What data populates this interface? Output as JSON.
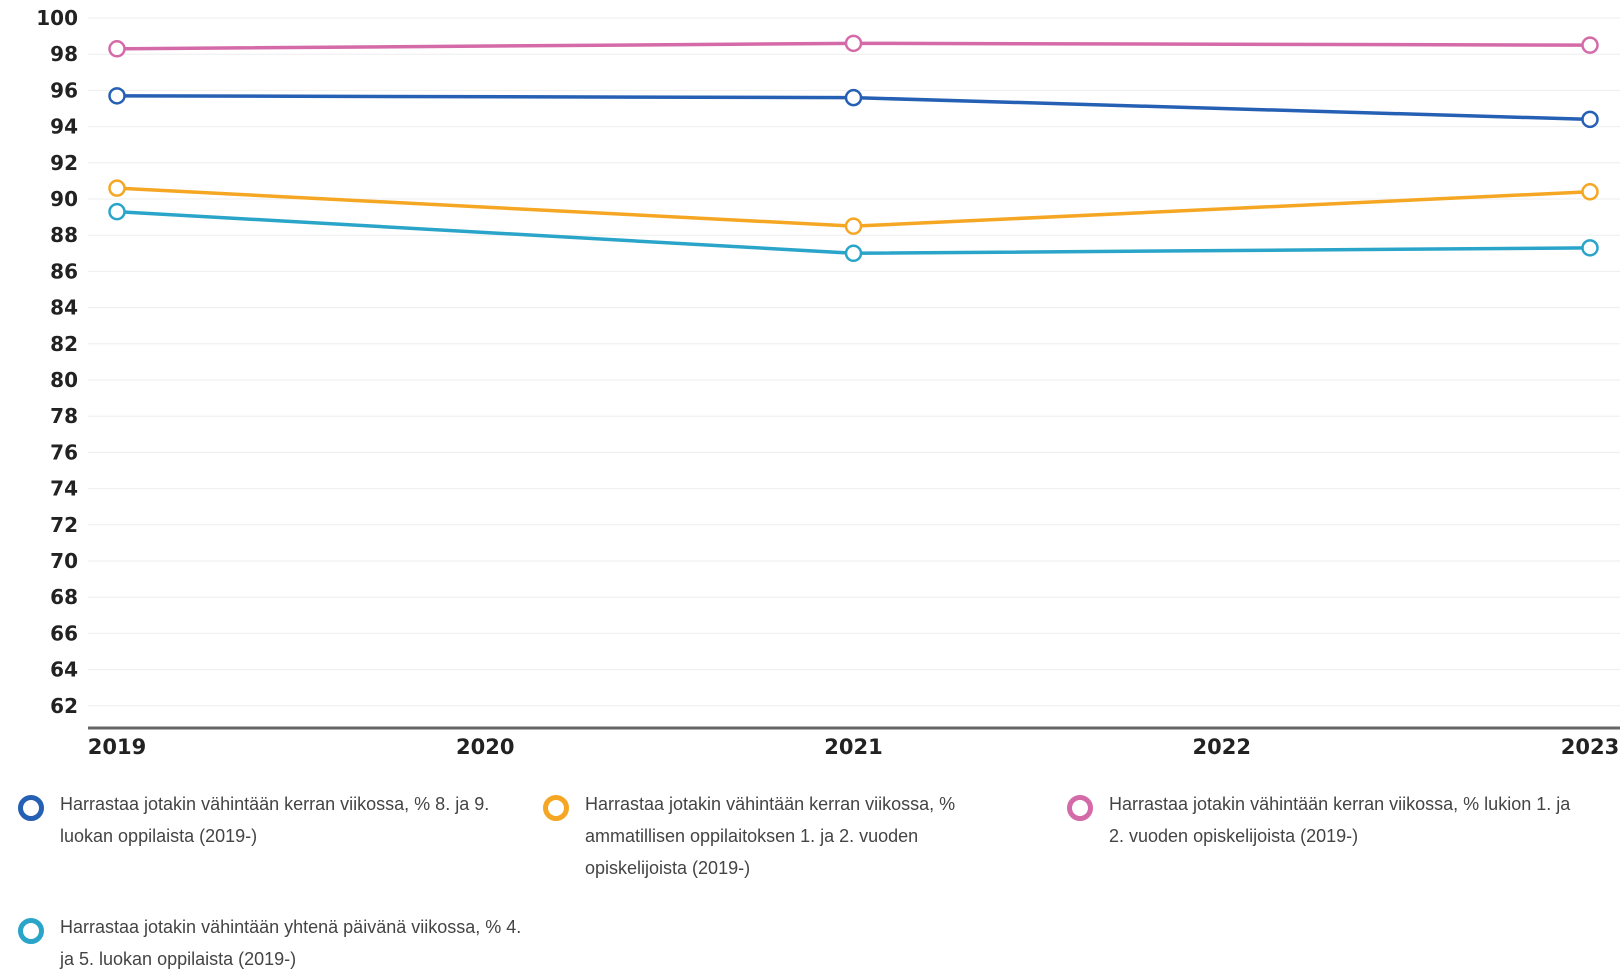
{
  "chart_data": {
    "type": "line",
    "x": [
      "2019",
      "2020",
      "2021",
      "2022",
      "2023"
    ],
    "y_ticks": [
      100,
      98,
      96,
      94,
      92,
      90,
      88,
      86,
      84,
      82,
      80,
      78,
      76,
      74,
      72,
      70,
      68,
      66,
      64,
      62
    ],
    "ylim": [
      61,
      100
    ],
    "grid": true,
    "legend_position": "bottom",
    "series": [
      {
        "name": "Harrastaa jotakin vähintään kerran viikossa, % 8. ja 9. luokan oppilaista (2019-)",
        "color": "#2660b4",
        "x": [
          "2019",
          "2021",
          "2023"
        ],
        "values": [
          95.7,
          95.6,
          94.4
        ]
      },
      {
        "name": "Harrastaa jotakin vähintään kerran viikossa, % ammatillisen oppilaitoksen 1. ja 2. vuoden opiskelijoista (2019-)",
        "color": "#f5a623",
        "x": [
          "2019",
          "2021",
          "2023"
        ],
        "values": [
          90.6,
          88.5,
          90.4
        ]
      },
      {
        "name": "Harrastaa jotakin vähintään kerran viikossa, % lukion 1. ja 2. vuoden opiskelijoista (2019-)",
        "color": "#d46aa8",
        "x": [
          "2019",
          "2021",
          "2023"
        ],
        "values": [
          98.3,
          98.6,
          98.5
        ]
      },
      {
        "name": "Harrastaa jotakin vähintään yhtenä päivänä viikossa, % 4. ja 5. luokan oppilaista (2019-)",
        "color": "#2aa5c9",
        "x": [
          "2019",
          "2021",
          "2023"
        ],
        "values": [
          89.3,
          87.0,
          87.3
        ]
      }
    ]
  }
}
